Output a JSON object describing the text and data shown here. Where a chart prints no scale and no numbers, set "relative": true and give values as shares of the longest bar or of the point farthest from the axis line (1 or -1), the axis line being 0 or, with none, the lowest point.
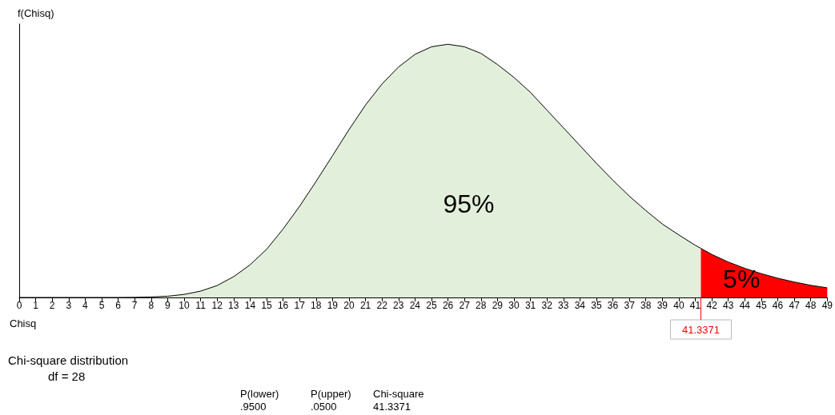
{
  "chart_data": {
    "type": "area",
    "title": "Chi-square distribution",
    "subtitle": "df = 28",
    "xlabel": "Chisq",
    "ylabel": "f(Chisq)",
    "relative": true,
    "xlim": [
      0,
      49
    ],
    "xticks": [
      0,
      1,
      2,
      3,
      4,
      5,
      6,
      7,
      8,
      9,
      10,
      11,
      12,
      13,
      14,
      15,
      16,
      17,
      18,
      19,
      20,
      21,
      22,
      23,
      24,
      25,
      26,
      27,
      28,
      29,
      30,
      31,
      32,
      33,
      34,
      35,
      36,
      37,
      38,
      39,
      40,
      41,
      42,
      43,
      44,
      45,
      46,
      47,
      48,
      49
    ],
    "series": [
      {
        "color": "#e2efda",
        "x": [
          0,
          1,
          2,
          3,
          4,
          5,
          6,
          7,
          8,
          9,
          10,
          11,
          12,
          13,
          14,
          15,
          16,
          17,
          18,
          19,
          20,
          21,
          22,
          23,
          24,
          25,
          26,
          27,
          28,
          29,
          30,
          31,
          32,
          33,
          34,
          35,
          36,
          37,
          38,
          39,
          40,
          41,
          41.3371
        ],
        "values": [
          0,
          0,
          0,
          0,
          0,
          0,
          0,
          0.0005,
          0.002,
          0.005,
          0.012,
          0.025,
          0.047,
          0.082,
          0.129,
          0.19,
          0.27,
          0.36,
          0.458,
          0.56,
          0.663,
          0.76,
          0.843,
          0.91,
          0.96,
          0.99,
          1,
          0.99,
          0.964,
          0.92,
          0.869,
          0.81,
          0.74,
          0.67,
          0.6,
          0.53,
          0.463,
          0.4,
          0.343,
          0.29,
          0.247,
          0.206,
          0.194
        ]
      },
      {
        "color": "#ff0000",
        "x": [
          41.3371,
          42,
          43,
          44,
          45,
          46,
          47,
          48,
          49
        ],
        "values": [
          0.194,
          0.17,
          0.14,
          0.115,
          0.094,
          0.076,
          0.061,
          0.048,
          0.038
        ]
      }
    ],
    "ref_lines": [
      {
        "axis": "x",
        "value": 41.3371,
        "label": "41.3371",
        "color": "#ff0000"
      }
    ],
    "annotations": [
      "95%",
      "5%",
      "P(lower)",
      "P(upper)",
      "Chi-square",
      ".9500",
      ".0500",
      "41.3371"
    ],
    "grid": false,
    "legend": false
  }
}
